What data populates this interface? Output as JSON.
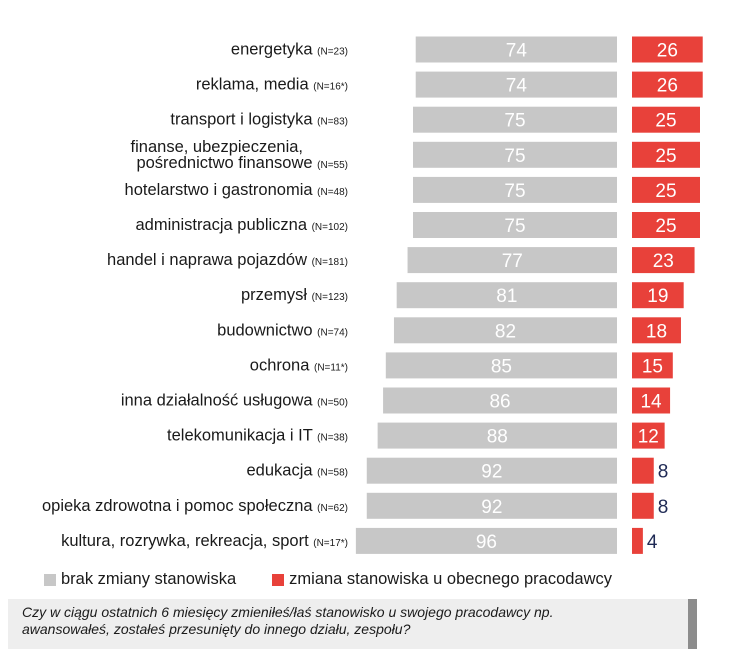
{
  "chart_data": {
    "type": "bar",
    "orientation": "horizontal-diverging",
    "categories": [
      {
        "name": "energetyka",
        "n": "(N=23)"
      },
      {
        "name": "reklama, media",
        "n": "(N=16*)"
      },
      {
        "name": "transport i logistyka",
        "n": "(N=83)"
      },
      {
        "name": "finanse, ubezpieczenia,|pośrednictwo finansowe",
        "n": "(N=55)"
      },
      {
        "name": "hotelarstwo i gastronomia",
        "n": "(N=48)"
      },
      {
        "name": "administracja publiczna",
        "n": "(N=102)"
      },
      {
        "name": "handel i naprawa pojazdów",
        "n": "(N=181)"
      },
      {
        "name": "przemysł",
        "n": "(N=123)"
      },
      {
        "name": "budownictwo",
        "n": "(N=74)"
      },
      {
        "name": "ochrona",
        "n": "(N=11*)"
      },
      {
        "name": "inna działalność usługowa",
        "n": "(N=50)"
      },
      {
        "name": "telekomunikacja i IT",
        "n": "(N=38)"
      },
      {
        "name": "edukacja",
        "n": "(N=58)"
      },
      {
        "name": "opieka zdrowotna i pomoc społeczna",
        "n": "(N=62)"
      },
      {
        "name": "kultura, rozrywka, rekreacja, sport",
        "n": "(N=17*)"
      }
    ],
    "series": [
      {
        "name": "brak zmiany stanowiska",
        "color": "#c7c7c7",
        "values": [
          74,
          74,
          75,
          75,
          75,
          75,
          77,
          81,
          82,
          85,
          86,
          88,
          92,
          92,
          96
        ]
      },
      {
        "name": "zmiana stanowiska u obecnego pracodawcy",
        "color": "#e8413a",
        "values": [
          26,
          26,
          25,
          25,
          25,
          25,
          23,
          19,
          18,
          15,
          14,
          12,
          8,
          8,
          4
        ]
      }
    ],
    "value_label_color_outside": "#1f2a55",
    "grid": false,
    "legend_position": "bottom-left"
  },
  "footer": {
    "question_line1": "Czy w ciągu ostatnich 6 miesięcy zmieniłeś/łaś stanowisko u swojego pracodawcy np.",
    "question_line2": "awansowałeś, zostałeś przesunięty do innego działu, zespołu?"
  }
}
